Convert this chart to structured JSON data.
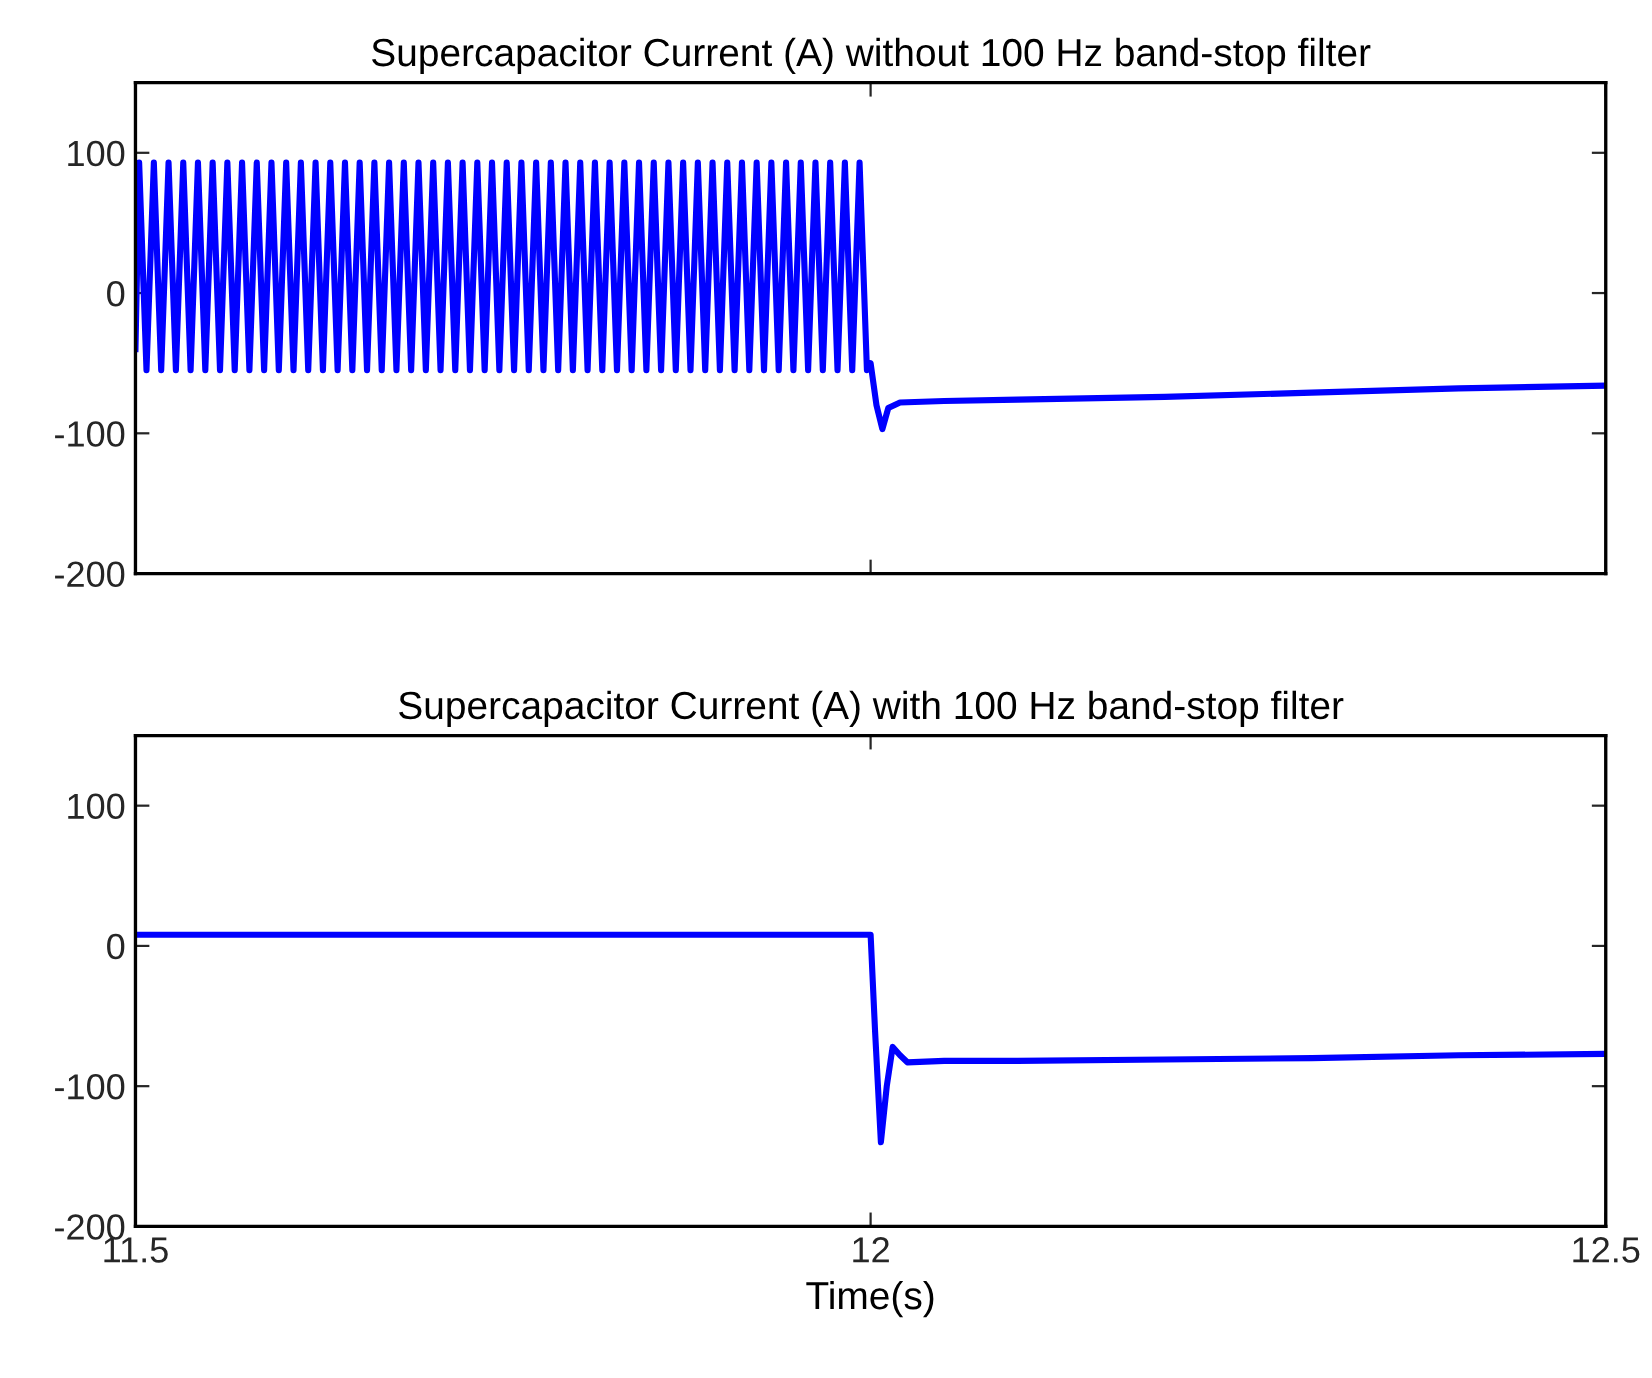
{
  "chart_data": [
    {
      "type": "line",
      "title": "Supercapacitor Current (A) without 100 Hz band-stop filter",
      "tick_labels": "y",
      "xlim": [
        11.5,
        12.5
      ],
      "xticks": [
        11.5,
        12,
        12.5
      ],
      "ylim": [
        -200,
        150
      ],
      "yticks": [
        -200,
        -100,
        0,
        100
      ],
      "grid": false,
      "x": [
        11.5,
        11.5025,
        11.5075,
        11.5125,
        11.5175,
        11.5225,
        11.5275,
        11.5325,
        11.5375,
        11.5425,
        11.5475,
        11.5525,
        11.5575,
        11.5625,
        11.5675,
        11.5725,
        11.5775,
        11.5825,
        11.5875,
        11.5925,
        11.5975,
        11.6025,
        11.6075,
        11.6125,
        11.6175,
        11.6225,
        11.6275,
        11.6325,
        11.6375,
        11.6425,
        11.6475,
        11.6525,
        11.6575,
        11.6625,
        11.6675,
        11.6725,
        11.6775,
        11.6825,
        11.6875,
        11.6925,
        11.6975,
        11.7025,
        11.7075,
        11.7125,
        11.7175,
        11.7225,
        11.7275,
        11.7325,
        11.7375,
        11.7425,
        11.7475,
        11.7525,
        11.7575,
        11.7625,
        11.7675,
        11.7725,
        11.7775,
        11.7825,
        11.7875,
        11.7925,
        11.7975,
        11.8025,
        11.8075,
        11.8125,
        11.8175,
        11.8225,
        11.8275,
        11.8325,
        11.8375,
        11.8425,
        11.8475,
        11.8525,
        11.8575,
        11.8625,
        11.8675,
        11.8725,
        11.8775,
        11.8825,
        11.8875,
        11.8925,
        11.8975,
        11.9025,
        11.9075,
        11.9125,
        11.9175,
        11.9225,
        11.9275,
        11.9325,
        11.9375,
        11.9425,
        11.9475,
        11.9525,
        11.9575,
        11.9625,
        11.9675,
        11.9725,
        11.9775,
        11.9825,
        11.9875,
        11.9925,
        11.9975,
        12.0,
        12.004,
        12.008,
        12.012,
        12.02,
        12.05,
        12.1,
        12.2,
        12.3,
        12.4,
        12.5
      ],
      "series": [
        {
          "color": "#0000ff",
          "values": [
            -40,
            93,
            -55,
            93,
            -55,
            93,
            -55,
            93,
            -55,
            93,
            -55,
            93,
            -55,
            93,
            -55,
            93,
            -55,
            93,
            -55,
            93,
            -55,
            93,
            -55,
            93,
            -55,
            93,
            -55,
            93,
            -55,
            93,
            -55,
            93,
            -55,
            93,
            -55,
            93,
            -55,
            93,
            -55,
            93,
            -55,
            93,
            -55,
            93,
            -55,
            93,
            -55,
            93,
            -55,
            93,
            -55,
            93,
            -55,
            93,
            -55,
            93,
            -55,
            93,
            -55,
            93,
            -55,
            93,
            -55,
            93,
            -55,
            93,
            -55,
            93,
            -55,
            93,
            -55,
            93,
            -55,
            93,
            -55,
            93,
            -55,
            93,
            -55,
            93,
            -55,
            93,
            -55,
            93,
            -55,
            93,
            -55,
            93,
            -55,
            93,
            -55,
            93,
            -55,
            93,
            -55,
            93,
            -55,
            93,
            -55,
            93,
            -55,
            -50,
            -80,
            -97,
            -82,
            -78,
            -77,
            -76,
            -74,
            -71,
            -68,
            -66
          ]
        }
      ]
    },
    {
      "type": "line",
      "title": "Supercapacitor Current (A) with 100 Hz band-stop filter",
      "xlabel": "Time(s)",
      "xlim": [
        11.5,
        12.5
      ],
      "xticks": [
        11.5,
        12,
        12.5
      ],
      "ylim": [
        -200,
        150
      ],
      "yticks": [
        -200,
        -100,
        0,
        100
      ],
      "grid": false,
      "x": [
        11.5,
        11.7,
        11.9,
        12.0,
        12.003,
        12.007,
        12.011,
        12.015,
        12.02,
        12.025,
        12.05,
        12.1,
        12.2,
        12.3,
        12.4,
        12.5
      ],
      "series": [
        {
          "color": "#0000ff",
          "values": [
            8,
            8,
            8,
            8,
            -60,
            -140,
            -100,
            -72,
            -78,
            -83,
            -82,
            -82,
            -81,
            -80,
            -78,
            -77
          ]
        }
      ]
    }
  ]
}
